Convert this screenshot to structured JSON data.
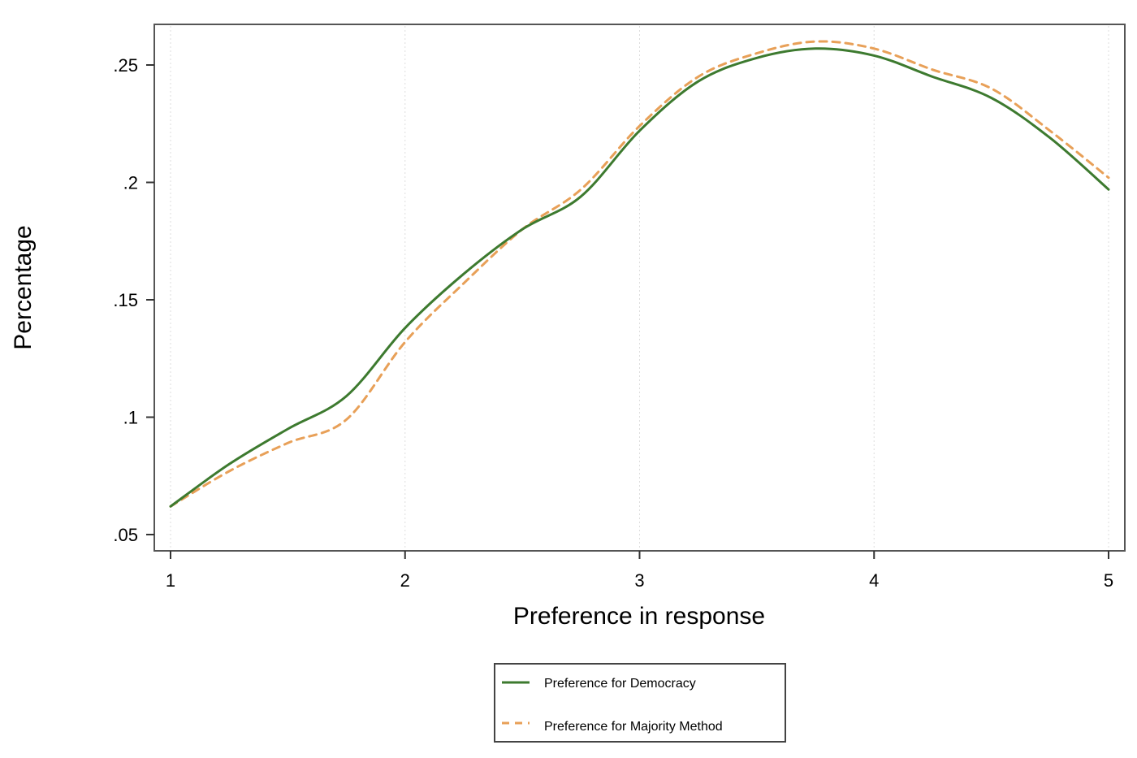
{
  "chart_data": {
    "type": "line",
    "title": "",
    "xlabel": "Preference in response",
    "ylabel": "Percentage",
    "xlim": [
      1,
      5
    ],
    "ylim": [
      0.047,
      0.27
    ],
    "x_ticks": [
      1,
      2,
      3,
      4,
      5
    ],
    "x_tick_labels": [
      "1",
      "2",
      "3",
      "4",
      "5"
    ],
    "y_ticks": [
      0.05,
      0.1,
      0.15,
      0.2,
      0.25
    ],
    "y_tick_labels": [
      ".05",
      ".1",
      ".15",
      ".2",
      ".25"
    ],
    "grid": "vertical dotted",
    "legend_position": "bottom-center",
    "series": [
      {
        "name": "Preference for Democracy",
        "color": "#3d7a2f",
        "dash": "solid",
        "x": [
          1,
          1.25,
          1.5,
          1.75,
          2,
          2.25,
          2.5,
          2.75,
          3,
          3.25,
          3.5,
          3.75,
          4,
          4.25,
          4.5,
          4.75,
          5
        ],
        "y": [
          0.062,
          0.08,
          0.095,
          0.109,
          0.138,
          0.161,
          0.18,
          0.194,
          0.222,
          0.243,
          0.253,
          0.257,
          0.254,
          0.245,
          0.236,
          0.219,
          0.197
        ]
      },
      {
        "name": "Preference for Majority Method",
        "color": "#e8a058",
        "dash": "dashed",
        "x": [
          1,
          1.25,
          1.5,
          1.75,
          2,
          2.25,
          2.5,
          2.75,
          3,
          3.25,
          3.5,
          3.75,
          4,
          4.25,
          4.5,
          4.75,
          5
        ],
        "y": [
          0.062,
          0.077,
          0.089,
          0.099,
          0.132,
          0.157,
          0.18,
          0.197,
          0.224,
          0.245,
          0.255,
          0.26,
          0.257,
          0.248,
          0.24,
          0.222,
          0.202
        ]
      }
    ]
  }
}
